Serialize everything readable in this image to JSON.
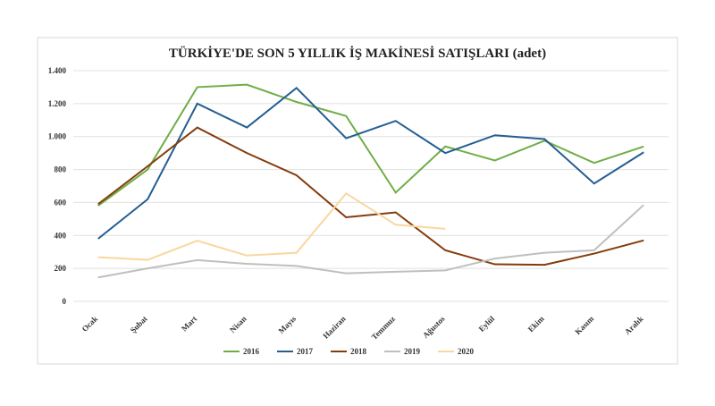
{
  "chart_data": {
    "type": "line",
    "title": "TÜRKİYE'DE SON 5 YILLIK İŞ MAKİNESİ SATIŞLARI (adet)",
    "categories": [
      "Ocak",
      "Şubat",
      "Mart",
      "Nisan",
      "Mayıs",
      "Haziran",
      "Temmuz",
      "Ağustos",
      "Eylül",
      "Ekim",
      "Kasım",
      "Aralık"
    ],
    "series": [
      {
        "name": "2016",
        "color": "#70ad47",
        "values": [
          580,
          800,
          1300,
          1315,
          1210,
          1125,
          660,
          940,
          855,
          975,
          840,
          940
        ]
      },
      {
        "name": "2017",
        "color": "#255e91",
        "values": [
          380,
          620,
          1200,
          1055,
          1295,
          990,
          1095,
          900,
          1008,
          985,
          715,
          905
        ]
      },
      {
        "name": "2018",
        "color": "#843c0c",
        "values": [
          590,
          820,
          1055,
          900,
          765,
          510,
          540,
          310,
          225,
          222,
          290,
          370
        ]
      },
      {
        "name": "2019",
        "color": "#bfbfbf",
        "values": [
          145,
          200,
          250,
          228,
          215,
          170,
          180,
          188,
          260,
          295,
          310,
          585
        ]
      },
      {
        "name": "2020",
        "color": "#f9d79f",
        "values": [
          268,
          252,
          368,
          278,
          295,
          655,
          465,
          440,
          null,
          null,
          null,
          null
        ]
      }
    ],
    "ylim": [
      0,
      1400
    ],
    "yticks": [
      0,
      200,
      400,
      600,
      800,
      {
        "value": 1000,
        "label": "1.000"
      },
      {
        "value": 1200,
        "label": "1.200"
      },
      {
        "value": 1400,
        "label": "1.400"
      }
    ],
    "grid": true,
    "legend": "bottom"
  }
}
